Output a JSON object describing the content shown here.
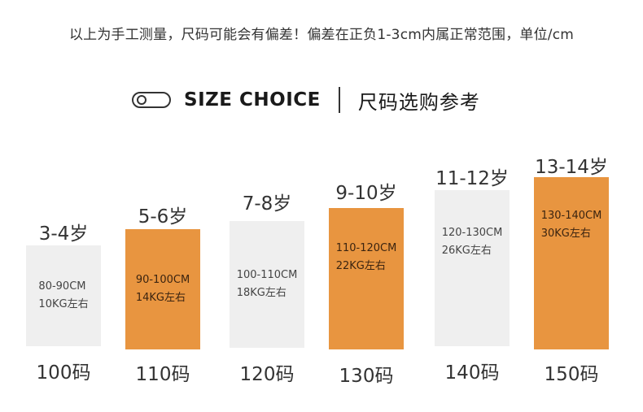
{
  "notice": "以上为手工测量，尺码可能会有偏差！偏差在正负1-3cm内属正常范围，单位/cm",
  "header": {
    "title_en": "SIZE CHOICE",
    "title_cn": "尺码选购参考",
    "icon": "toggle-icon"
  },
  "colors": {
    "accent": "#e89540",
    "box_grey": "#efefef",
    "text": "#333333"
  },
  "sizes": [
    {
      "age": "3-4岁",
      "height": "80-90CM",
      "weight": "10KG左右",
      "size": "100码",
      "style": "grey"
    },
    {
      "age": "5-6岁",
      "height": "90-100CM",
      "weight": "14KG左右",
      "size": "110码",
      "style": "orange"
    },
    {
      "age": "7-8岁",
      "height": "100-110CM",
      "weight": "18KG左右",
      "size": "120码",
      "style": "grey"
    },
    {
      "age": "9-10岁",
      "height": "110-120CM",
      "weight": "22KG左右",
      "size": "130码",
      "style": "orange"
    },
    {
      "age": "11-12岁",
      "height": "120-130CM",
      "weight": "26KG左右",
      "size": "140码",
      "style": "grey"
    },
    {
      "age": "13-14岁",
      "height": "130-140CM",
      "weight": "30KG左右",
      "size": "150码",
      "style": "orange"
    }
  ]
}
